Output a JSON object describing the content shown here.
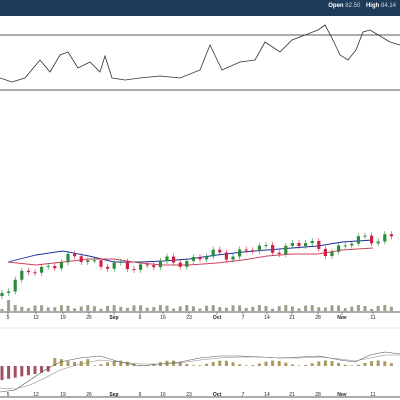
{
  "header": {
    "open_label": "Open",
    "open_value": "82.50",
    "high_label": "High",
    "high_value": "84.14"
  },
  "colors": {
    "background": "#ffffff",
    "header_bar": "#1f3b5a",
    "up_candle": "#2e8b3a",
    "down_candle": "#cc2244",
    "ma_fast": "#1a2e9e",
    "ma_slow": "#d0415c",
    "rsi_line": "#333333",
    "volume": "#9aa08a",
    "macd_hist_pos": "#a89a5c",
    "macd_hist_neg": "#a05060",
    "panel_border": "#222222"
  },
  "x_axis_ticks": [
    "5",
    "12",
    "19",
    "26",
    "Sep",
    "9",
    "16",
    "23",
    "Oct",
    "7",
    "14",
    "21",
    "28",
    "Nov",
    "11"
  ],
  "month_ticks": [
    "Sep",
    "Oct",
    "Nov"
  ],
  "chart_data": {
    "type": "line",
    "x": [
      "5",
      "12",
      "19",
      "26",
      "Sep",
      "9",
      "16",
      "23",
      "Oct",
      "7",
      "14",
      "21",
      "28",
      "Nov",
      "11"
    ],
    "price_candles_approx_close": [
      290,
      272,
      262,
      258,
      268,
      265,
      263,
      258,
      254,
      250,
      248,
      244,
      252,
      236,
      240
    ],
    "series": [
      {
        "values": [
          262,
          255,
          251,
          256,
          262,
          262,
          261,
          259,
          255,
          252,
          250,
          248,
          246,
          242,
          240
        ]
      },
      {
        "values": [
          262,
          265,
          262,
          259,
          259,
          263,
          265,
          265,
          263,
          260,
          256,
          254,
          254,
          250,
          248
        ]
      }
    ],
    "grid": false
  }
}
